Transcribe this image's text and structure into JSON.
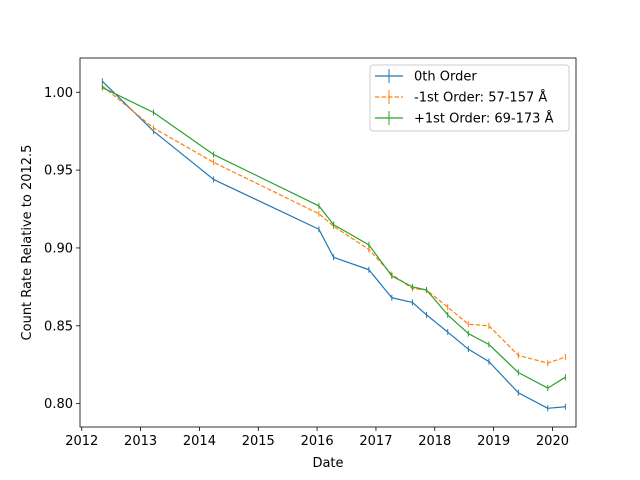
{
  "chart_data": {
    "type": "line",
    "title": "",
    "xlabel": "Date",
    "ylabel": "Count Rate Relative to 2012.5",
    "xlim": [
      2011.97,
      2020.4
    ],
    "ylim": [
      0.785,
      1.022
    ],
    "xticks": [
      2012,
      2013,
      2014,
      2015,
      2016,
      2017,
      2018,
      2019,
      2020
    ],
    "yticks": [
      0.8,
      0.85,
      0.9,
      0.95,
      1.0
    ],
    "ytick_labels": [
      "0.80",
      "0.85",
      "0.90",
      "0.95",
      "1.00"
    ],
    "grid": false,
    "legend_position": "upper right",
    "series": [
      {
        "name": "0th Order",
        "color": "#1f77b4",
        "dash": "solid",
        "x": [
          2012.35,
          2013.22,
          2014.24,
          2016.03,
          2016.28,
          2016.88,
          2017.27,
          2017.62,
          2017.86,
          2018.22,
          2018.57,
          2018.92,
          2019.42,
          2019.92,
          2020.22
        ],
        "y": [
          1.007,
          0.975,
          0.944,
          0.912,
          0.894,
          0.886,
          0.868,
          0.865,
          0.857,
          0.846,
          0.835,
          0.827,
          0.807,
          0.797,
          0.798
        ]
      },
      {
        "name": "-1st Order: 57-157 Å",
        "color": "#ff7f0e",
        "dash": "dashed",
        "x": [
          2012.35,
          2013.22,
          2014.24,
          2016.03,
          2016.28,
          2016.88,
          2017.27,
          2017.62,
          2017.86,
          2018.22,
          2018.57,
          2018.92,
          2019.42,
          2019.92,
          2020.22
        ],
        "y": [
          1.004,
          0.977,
          0.955,
          0.922,
          0.914,
          0.899,
          0.883,
          0.874,
          0.873,
          0.862,
          0.851,
          0.85,
          0.831,
          0.826,
          0.83
        ]
      },
      {
        "name": "+1st Order: 69-173 Å",
        "color": "#2ca02c",
        "dash": "solid",
        "x": [
          2012.35,
          2013.22,
          2014.24,
          2016.03,
          2016.28,
          2016.88,
          2017.27,
          2017.62,
          2017.86,
          2018.22,
          2018.57,
          2018.92,
          2019.42,
          2019.92,
          2020.22
        ],
        "y": [
          1.003,
          0.987,
          0.96,
          0.927,
          0.915,
          0.902,
          0.882,
          0.875,
          0.873,
          0.857,
          0.845,
          0.838,
          0.82,
          0.81,
          0.817
        ]
      }
    ]
  }
}
